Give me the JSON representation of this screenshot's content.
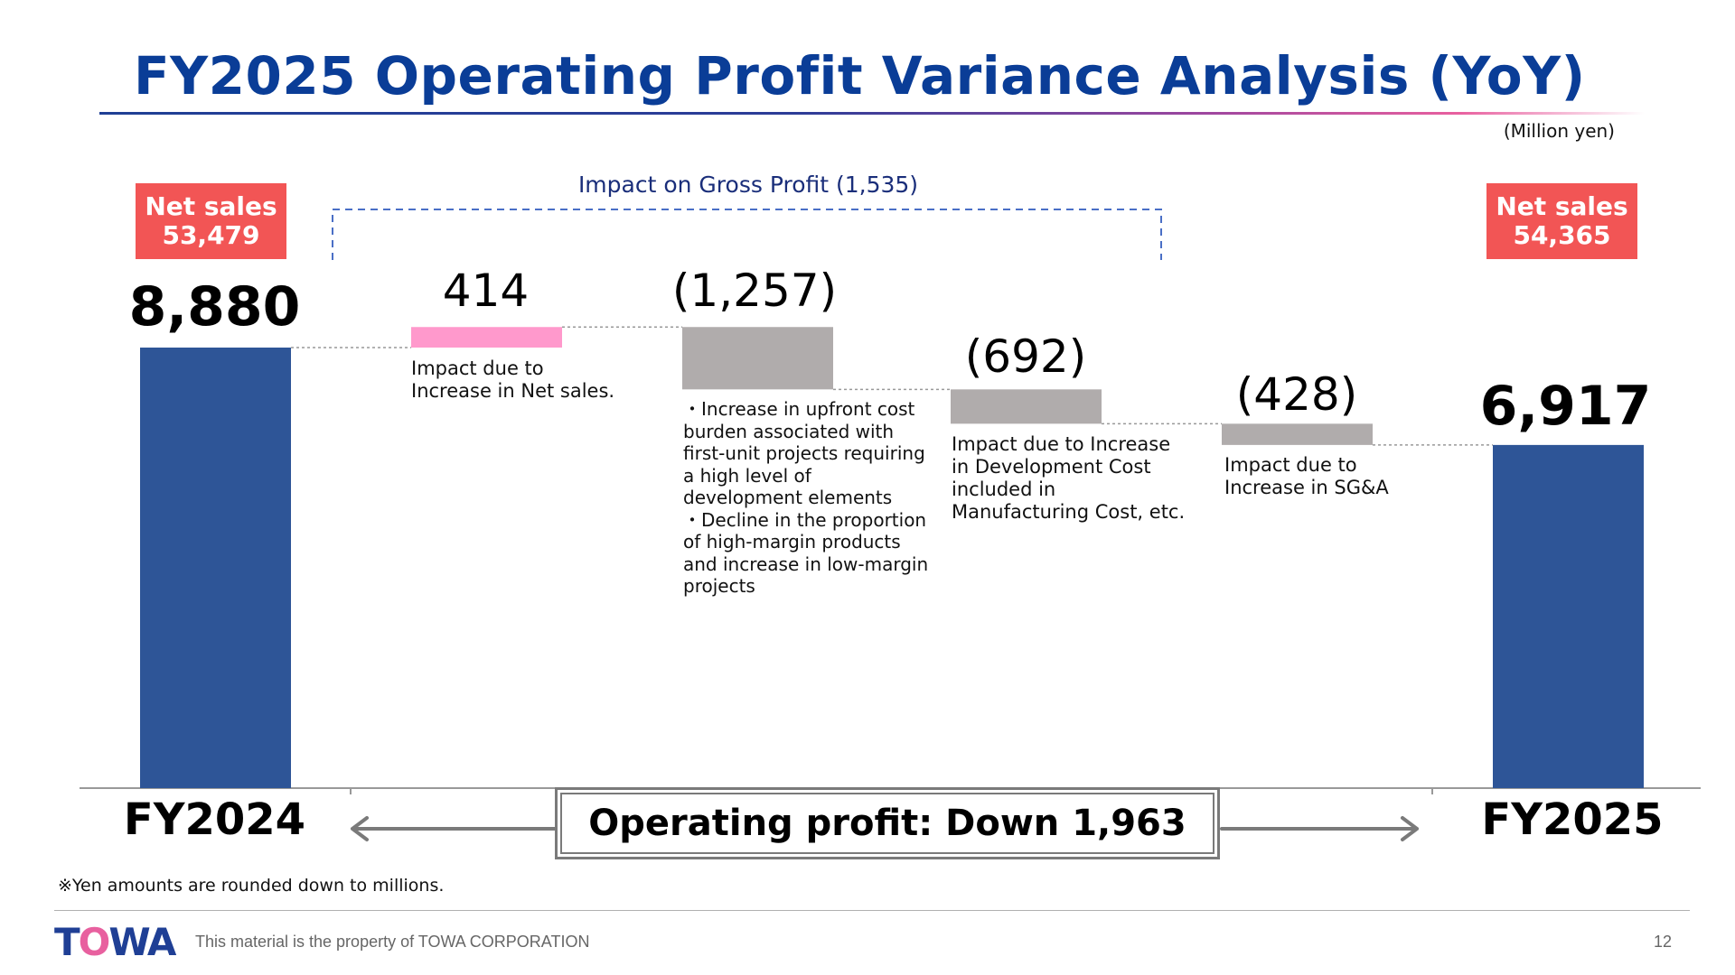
{
  "title": "FY2025 Operating Profit Variance Analysis (YoY)",
  "unit_label": "(Million yen)",
  "gross_profit_label": "Impact on Gross Profit (1,535)",
  "summary": "Operating profit: Down 1,963",
  "footnote": "※Yen amounts are rounded down to millions.",
  "footer": {
    "logo_text": "TOWA",
    "text": "This material is the property of TOWA CORPORATION",
    "page": "12"
  },
  "colors": {
    "title": "#0a3d97",
    "total_bar": "#2e5597",
    "increase_bar": "#ff99cc",
    "decrease_bar": "#b0acac",
    "sales_badge": "#f25555"
  },
  "chart_data": {
    "type": "waterfall",
    "ylim": [
      0,
      9000
    ],
    "steps": [
      {
        "kind": "total",
        "category": "FY2024",
        "value": 8880,
        "label": "8,880",
        "net_sales_title": "Net sales",
        "net_sales_value": "53,479"
      },
      {
        "kind": "increase",
        "value": 414,
        "label": "414",
        "description": [
          "Impact due to",
          "Increase in Net sales."
        ]
      },
      {
        "kind": "decrease",
        "value": -1257,
        "label": "(1,257)",
        "description": [
          "・Increase in upfront cost",
          "burden associated with",
          "first-unit projects requiring",
          "a high level of",
          "development elements",
          "・Decline in the proportion",
          "of high-margin products",
          "and increase in low-margin",
          "projects"
        ]
      },
      {
        "kind": "decrease",
        "value": -692,
        "label": "(692)",
        "description": [
          "Impact due to Increase",
          "in Development Cost",
          "included in",
          "Manufacturing Cost, etc."
        ]
      },
      {
        "kind": "decrease",
        "value": -428,
        "label": "(428)",
        "description": [
          "Impact due to",
          "Increase in SG&A"
        ]
      },
      {
        "kind": "total",
        "category": "FY2025",
        "value": 6917,
        "label": "6,917",
        "net_sales_title": "Net sales",
        "net_sales_value": "54,365"
      }
    ]
  }
}
